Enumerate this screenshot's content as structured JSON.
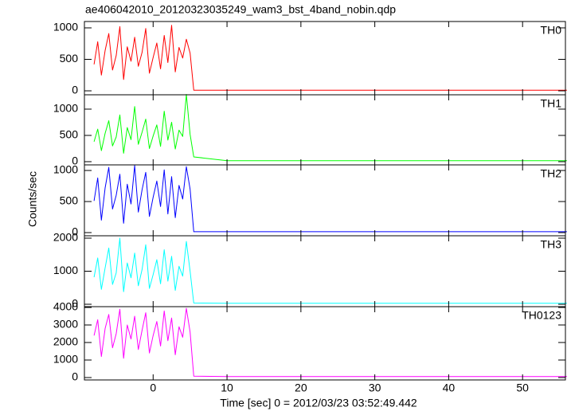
{
  "title": "ae406042010_20120323035249_wam3_bst_4band_nobin.qdp",
  "y_label": "Counts/sec",
  "x_label": "Time [sec] 0 = 2012/03/23 03:52:49.442",
  "chart_data": [
    {
      "type": "line",
      "label": "TH0",
      "color": "#ff0000",
      "x": [
        -8,
        -7.5,
        -7,
        -6.5,
        -6,
        -5.5,
        -5,
        -4.5,
        -4,
        -3.5,
        -3,
        -2.5,
        -2,
        -1.5,
        -1,
        -0.5,
        0,
        0.5,
        1,
        1.5,
        2,
        2.5,
        3,
        3.5,
        4,
        4.5,
        5,
        5.5,
        10,
        20,
        30,
        40,
        50,
        56
      ],
      "values": [
        420,
        780,
        250,
        640,
        910,
        330,
        560,
        1020,
        180,
        700,
        470,
        850,
        390,
        610,
        990,
        280,
        530,
        760,
        350,
        880,
        450,
        1040,
        300,
        690,
        520,
        820,
        600,
        10,
        10,
        10,
        10,
        10,
        10,
        10
      ],
      "xlim": [
        -9.3,
        55.8
      ],
      "xticks": [
        0,
        10,
        20,
        30,
        40,
        50
      ],
      "ylim": [
        -63,
        1101
      ],
      "yticks": [
        0,
        500,
        1000
      ]
    },
    {
      "type": "line",
      "label": "TH1",
      "color": "#00ff00",
      "x": [
        -8,
        -7.5,
        -7,
        -6.5,
        -6,
        -5.5,
        -5,
        -4.5,
        -4,
        -3.5,
        -3,
        -2.5,
        -2,
        -1.5,
        -1,
        -0.5,
        0,
        0.5,
        1,
        1.5,
        2,
        2.5,
        3,
        3.5,
        4,
        4.5,
        5,
        5.5,
        10,
        20,
        30,
        40,
        50,
        56
      ],
      "values": [
        380,
        620,
        210,
        540,
        780,
        300,
        470,
        890,
        160,
        650,
        420,
        1050,
        330,
        560,
        810,
        250,
        490,
        700,
        290,
        960,
        410,
        750,
        240,
        600,
        480,
        1280,
        520,
        90,
        20,
        20,
        20,
        20,
        20,
        20
      ],
      "xlim": [
        -9.3,
        55.8
      ],
      "xticks": [
        0,
        10,
        20,
        30,
        40,
        50
      ],
      "ylim": [
        -61,
        1273
      ],
      "yticks": [
        0,
        500,
        1000
      ]
    },
    {
      "type": "line",
      "label": "TH2",
      "color": "#0000ff",
      "x": [
        -8,
        -7.5,
        -7,
        -6.5,
        -6,
        -5.5,
        -5,
        -4.5,
        -4,
        -3.5,
        -3,
        -2.5,
        -2,
        -1.5,
        -1,
        -0.5,
        0,
        0.5,
        1,
        1.5,
        2,
        2.5,
        3,
        3.5,
        4,
        4.5,
        5,
        5.5,
        10,
        20,
        30,
        40,
        50,
        56
      ],
      "values": [
        510,
        880,
        200,
        720,
        1050,
        380,
        600,
        940,
        150,
        780,
        460,
        1080,
        330,
        690,
        970,
        260,
        570,
        830,
        420,
        1010,
        300,
        900,
        240,
        760,
        540,
        1060,
        700,
        15,
        15,
        15,
        15,
        15,
        15,
        15
      ],
      "xlim": [
        -9.3,
        55.8
      ],
      "xticks": [
        0,
        10,
        20,
        30,
        40,
        50
      ],
      "ylim": [
        -51,
        1090
      ],
      "yticks": [
        0,
        500,
        1000
      ]
    },
    {
      "type": "line",
      "label": "TH3",
      "color": "#00ffff",
      "x": [
        -8,
        -7.5,
        -7,
        -6.5,
        -6,
        -5.5,
        -5,
        -4.5,
        -4,
        -3.5,
        -3,
        -2.5,
        -2,
        -1.5,
        -1,
        -0.5,
        0,
        0.5,
        1,
        1.5,
        2,
        2.5,
        3,
        3.5,
        4,
        4.5,
        5,
        5.5,
        10,
        20,
        30,
        40,
        50,
        56
      ],
      "values": [
        820,
        1400,
        450,
        1100,
        1700,
        600,
        950,
        2000,
        380,
        1250,
        800,
        1550,
        560,
        1050,
        1800,
        480,
        900,
        1350,
        620,
        1650,
        700,
        1450,
        420,
        1150,
        850,
        1900,
        1000,
        40,
        30,
        30,
        30,
        30,
        30,
        30
      ],
      "xlim": [
        -9.3,
        55.8
      ],
      "xticks": [
        0,
        10,
        20,
        30,
        40,
        50
      ],
      "ylim": [
        -72,
        2072
      ],
      "yticks": [
        0,
        1000,
        2000
      ]
    },
    {
      "type": "line",
      "label": "TH0123",
      "color": "#ff00ff",
      "x": [
        -8,
        -7.5,
        -7,
        -6.5,
        -6,
        -5.5,
        -5,
        -4.5,
        -4,
        -3.5,
        -3,
        -2.5,
        -2,
        -1.5,
        -1,
        -0.5,
        0,
        0.5,
        1,
        1.5,
        2,
        2.5,
        3,
        3.5,
        4,
        4.5,
        5,
        5.5,
        10,
        20,
        30,
        40,
        50,
        56
      ],
      "values": [
        2400,
        3300,
        1200,
        2800,
        3600,
        1700,
        2500,
        3900,
        1100,
        3000,
        2200,
        3500,
        1600,
        2700,
        3700,
        1400,
        2400,
        3200,
        1800,
        3800,
        2100,
        3400,
        1300,
        2900,
        2300,
        3950,
        2600,
        80,
        60,
        60,
        60,
        60,
        60,
        60
      ],
      "xlim": [
        -9.3,
        55.8
      ],
      "xticks": [
        0,
        10,
        20,
        30,
        40,
        50
      ],
      "ylim": [
        -136,
        4045
      ],
      "yticks": [
        0,
        1000,
        2000,
        3000,
        4000
      ]
    }
  ]
}
